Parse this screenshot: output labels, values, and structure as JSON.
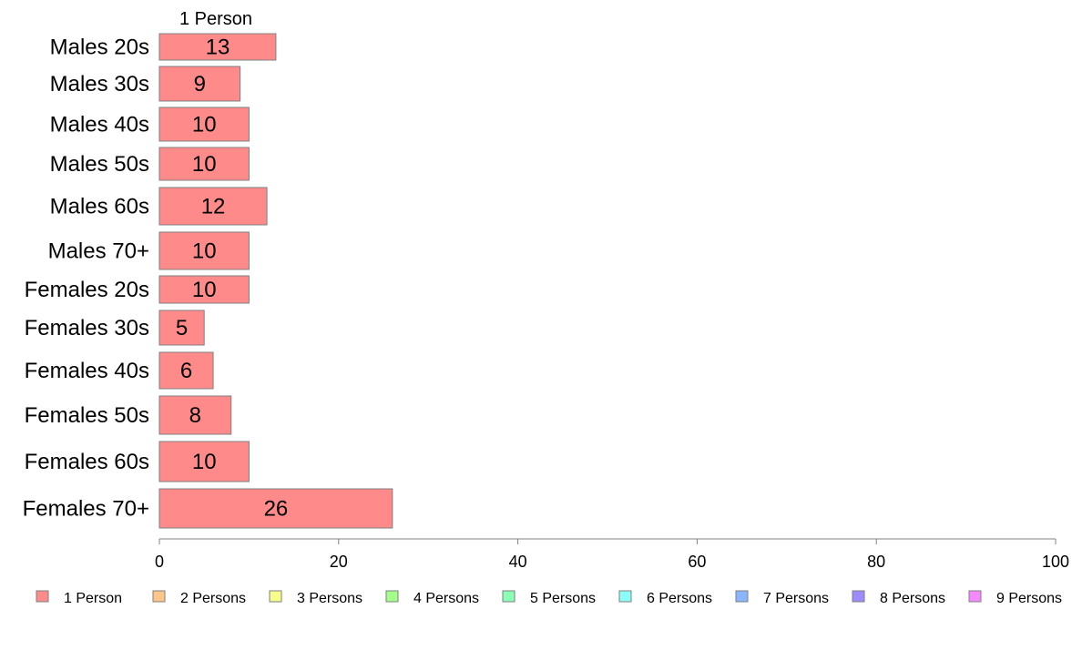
{
  "chart_data": {
    "type": "bar",
    "orientation": "horizontal",
    "stacked": true,
    "categories": [
      "Males 20s",
      "Males 30s",
      "Males 40s",
      "Males 50s",
      "Males 60s",
      "Males 70+",
      "Females 20s",
      "Females 30s",
      "Females 40s",
      "Females 50s",
      "Females 60s",
      "Females 70+"
    ],
    "series": [
      {
        "name": "1 Person",
        "color": "#ff8a8a",
        "values": [
          13,
          9,
          10,
          10,
          12,
          10,
          10,
          5,
          6,
          8,
          10,
          26
        ],
        "data_labels": [
          "13",
          "9",
          "10",
          "10",
          "12",
          "10",
          "10",
          "5",
          "6",
          "8",
          "10",
          "26"
        ]
      },
      {
        "name": "2 Persons",
        "color": "#ffc58a",
        "values": [
          0,
          0,
          0,
          0,
          0,
          0,
          0,
          0,
          0,
          0,
          0,
          0
        ]
      },
      {
        "name": "3 Persons",
        "color": "#f5ff8a",
        "values": [
          0,
          0,
          0,
          0,
          0,
          0,
          0,
          0,
          0,
          0,
          0,
          0
        ]
      },
      {
        "name": "4 Persons",
        "color": "#a4ff8a",
        "values": [
          0,
          0,
          0,
          0,
          0,
          0,
          0,
          0,
          0,
          0,
          0,
          0
        ]
      },
      {
        "name": "5 Persons",
        "color": "#8affb5",
        "values": [
          0,
          0,
          0,
          0,
          0,
          0,
          0,
          0,
          0,
          0,
          0,
          0
        ]
      },
      {
        "name": "6 Persons",
        "color": "#8afffa",
        "values": [
          0,
          0,
          0,
          0,
          0,
          0,
          0,
          0,
          0,
          0,
          0,
          0
        ]
      },
      {
        "name": "7 Persons",
        "color": "#8ab5ff",
        "values": [
          0,
          0,
          0,
          0,
          0,
          0,
          0,
          0,
          0,
          0,
          0,
          0
        ]
      },
      {
        "name": "8 Persons",
        "color": "#a08aff",
        "values": [
          0,
          0,
          0,
          0,
          0,
          0,
          0,
          0,
          0,
          0,
          0,
          0
        ]
      },
      {
        "name": "9 Persons",
        "color": "#f58aff",
        "values": [
          0,
          0,
          0,
          0,
          0,
          0,
          0,
          0,
          0,
          0,
          0,
          0
        ]
      }
    ],
    "series_header": "1 Person",
    "xlim": [
      0,
      100
    ],
    "xticks": [
      0,
      20,
      40,
      60,
      80,
      100
    ],
    "grid": false,
    "legend_position": "bottom"
  }
}
